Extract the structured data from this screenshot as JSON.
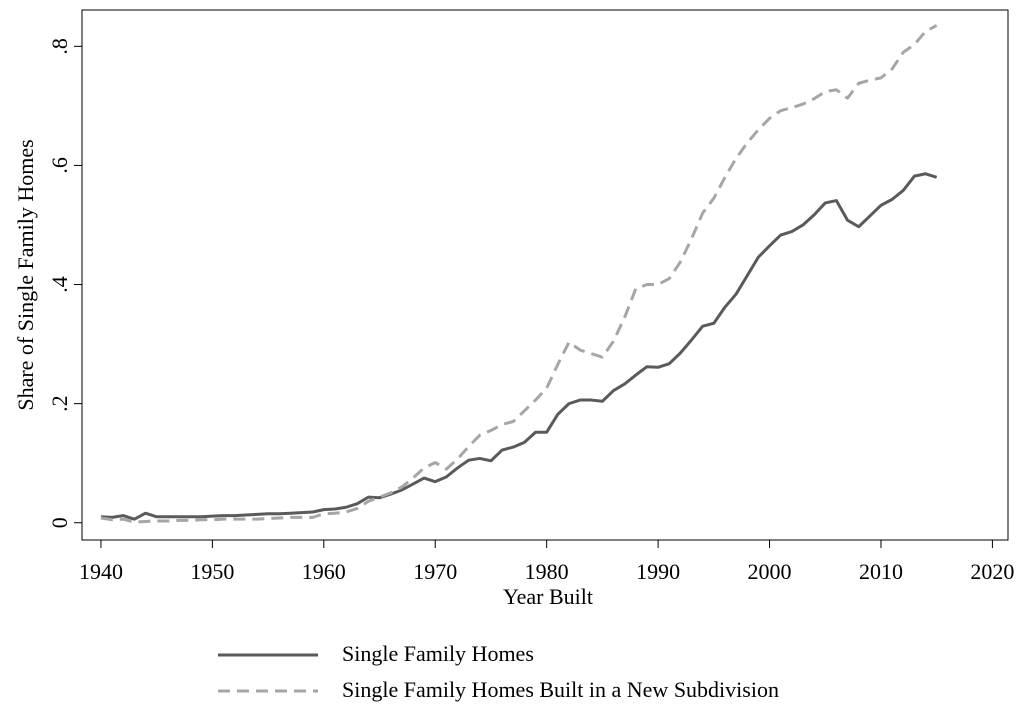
{
  "chart_data": {
    "type": "line",
    "x": [
      1940,
      1941,
      1942,
      1943,
      1944,
      1945,
      1946,
      1947,
      1948,
      1949,
      1950,
      1951,
      1952,
      1953,
      1954,
      1955,
      1956,
      1957,
      1958,
      1959,
      1960,
      1961,
      1962,
      1963,
      1964,
      1965,
      1966,
      1967,
      1968,
      1969,
      1970,
      1971,
      1972,
      1973,
      1974,
      1975,
      1976,
      1977,
      1978,
      1979,
      1980,
      1981,
      1982,
      1983,
      1984,
      1985,
      1986,
      1987,
      1988,
      1989,
      1990,
      1991,
      1992,
      1993,
      1994,
      1995,
      1996,
      1997,
      1998,
      1999,
      2000,
      2001,
      2002,
      2003,
      2004,
      2005,
      2006,
      2007,
      2008,
      2009,
      2010,
      2011,
      2012,
      2013,
      2014,
      2015
    ],
    "series": [
      {
        "name": "Single Family Homes",
        "color": "#5a5a5a",
        "dash": false,
        "values": [
          0.01,
          0.009,
          0.012,
          0.006,
          0.016,
          0.01,
          0.01,
          0.01,
          0.01,
          0.01,
          0.011,
          0.012,
          0.012,
          0.013,
          0.014,
          0.015,
          0.015,
          0.016,
          0.017,
          0.018,
          0.022,
          0.023,
          0.026,
          0.032,
          0.043,
          0.042,
          0.048,
          0.055,
          0.065,
          0.075,
          0.069,
          0.077,
          0.092,
          0.105,
          0.108,
          0.104,
          0.122,
          0.127,
          0.135,
          0.152,
          0.152,
          0.182,
          0.2,
          0.206,
          0.206,
          0.204,
          0.222,
          0.233,
          0.248,
          0.262,
          0.261,
          0.267,
          0.285,
          0.307,
          0.33,
          0.335,
          0.362,
          0.384,
          0.415,
          0.446,
          0.465,
          0.483,
          0.489,
          0.5,
          0.517,
          0.537,
          0.541,
          0.508,
          0.497,
          0.515,
          0.533,
          0.543,
          0.558,
          0.582,
          0.586,
          0.58
        ]
      },
      {
        "name": "Single Family Homes Built in a New Subdivision",
        "color": "#a6a6a6",
        "dash": true,
        "values": [
          0.008,
          0.005,
          0.006,
          0.001,
          0.002,
          0.003,
          0.003,
          0.004,
          0.004,
          0.005,
          0.005,
          0.006,
          0.006,
          0.006,
          0.006,
          0.007,
          0.008,
          0.009,
          0.009,
          0.009,
          0.015,
          0.016,
          0.018,
          0.024,
          0.036,
          0.043,
          0.05,
          0.06,
          0.075,
          0.092,
          0.101,
          0.09,
          0.107,
          0.128,
          0.147,
          0.155,
          0.165,
          0.17,
          0.188,
          0.206,
          0.226,
          0.266,
          0.303,
          0.29,
          0.284,
          0.278,
          0.305,
          0.345,
          0.393,
          0.4,
          0.4,
          0.41,
          0.438,
          0.477,
          0.52,
          0.545,
          0.58,
          0.612,
          0.638,
          0.66,
          0.679,
          0.692,
          0.697,
          0.703,
          0.712,
          0.724,
          0.727,
          0.713,
          0.738,
          0.743,
          0.747,
          0.762,
          0.79,
          0.803,
          0.825,
          0.835
        ]
      }
    ],
    "xlabel": "Year Built",
    "ylabel": "Share of Single Family Homes",
    "xlim": [
      1938.3,
      2021.4
    ],
    "xticks": [
      1940,
      1950,
      1960,
      1970,
      1980,
      1990,
      2000,
      2010,
      2020
    ],
    "ylim": [
      -0.029,
      0.861
    ],
    "yticks": [
      0,
      {
        "value": 0.2,
        "label": ".2"
      },
      {
        "value": 0.4,
        "label": ".4"
      },
      {
        "value": 0.6,
        "label": ".6"
      },
      {
        "value": 0.8,
        "label": ".8"
      }
    ],
    "grid": false
  }
}
